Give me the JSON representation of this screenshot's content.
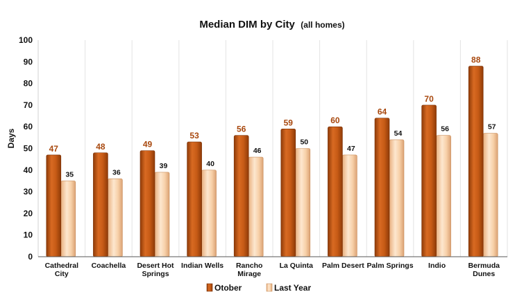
{
  "chart_data": {
    "type": "bar",
    "title": "Median DIM by City",
    "subtitle": "(all homes)",
    "xlabel": "",
    "ylabel": "Days",
    "ylim": [
      0,
      100
    ],
    "yticks": [
      0,
      10,
      20,
      30,
      40,
      50,
      60,
      70,
      80,
      90,
      100
    ],
    "grid": "vertical",
    "legend": "bottom",
    "categories": [
      [
        "Cathedral",
        "City"
      ],
      [
        "Coachella"
      ],
      [
        "Desert Hot",
        "Springs"
      ],
      [
        "Indian Wells"
      ],
      [
        "Rancho",
        "Mirage"
      ],
      [
        "La Quinta"
      ],
      [
        "Palm Desert"
      ],
      [
        "Palm Springs"
      ],
      [
        "Indio"
      ],
      [
        "Bermuda",
        "Dunes"
      ]
    ],
    "series": [
      {
        "name": "Otober",
        "color": "#c75b16",
        "values": [
          47,
          48,
          49,
          53,
          56,
          59,
          60,
          64,
          70,
          88
        ]
      },
      {
        "name": "Last Year",
        "color": "#f5c79a",
        "values": [
          35,
          36,
          39,
          40,
          46,
          50,
          47,
          54,
          56,
          57
        ]
      }
    ]
  }
}
